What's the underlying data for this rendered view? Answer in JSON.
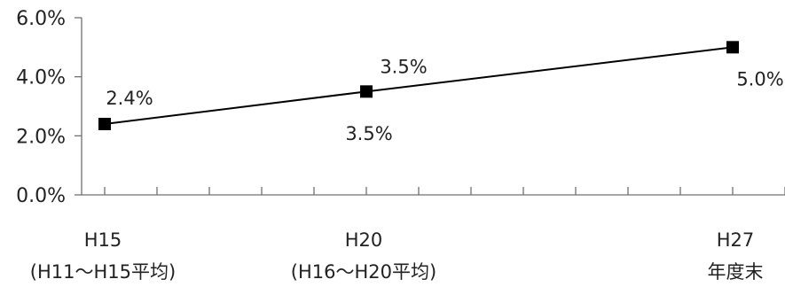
{
  "chart_data": {
    "type": "line",
    "title": "",
    "xlabel": "",
    "ylabel": "",
    "ylim": [
      0,
      6
    ],
    "y_ticks": [
      {
        "value": 0,
        "label": "0.0%"
      },
      {
        "value": 2,
        "label": "2.0%"
      },
      {
        "value": 4,
        "label": "4.0%"
      },
      {
        "value": 6,
        "label": "6.0%"
      }
    ],
    "x_domain": [
      2003,
      2015
    ],
    "x_minor_ticks": [
      2003,
      2004,
      2005,
      2006,
      2007,
      2008,
      2009,
      2010,
      2011,
      2012,
      2013,
      2014,
      2015,
      2016
    ],
    "categories": [
      {
        "x": 2003,
        "line1": "H15",
        "line2": "(H11〜H15平均)"
      },
      {
        "x": 2008,
        "line1": "H20",
        "line2": "(H16〜H20平均)"
      },
      {
        "x": 2015,
        "line1": "H27",
        "line2": "年度末"
      }
    ],
    "series": [
      {
        "values": [
          2.4,
          3.5,
          5.0
        ],
        "data_labels": [
          "2.4%",
          "3.5%",
          "5.0%"
        ]
      }
    ],
    "extra_labels": [
      {
        "x": 2008,
        "text": "3.5%"
      }
    ],
    "grid": false,
    "colors": {
      "line": "#000000",
      "axis": "#707070",
      "marker": "#000000"
    },
    "marker": "square"
  }
}
